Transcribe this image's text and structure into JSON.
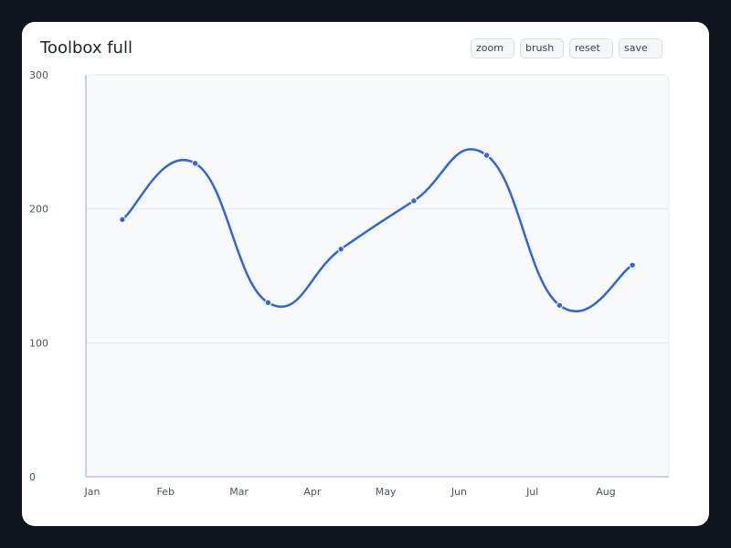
{
  "card": {
    "title": "Toolbox full"
  },
  "toolbox": {
    "buttons": [
      {
        "id": "zoom",
        "label": "zoom"
      },
      {
        "id": "brush",
        "label": "brush"
      },
      {
        "id": "reset",
        "label": "reset"
      },
      {
        "id": "save",
        "label": "save"
      }
    ]
  },
  "colors": {
    "series": "#2f66d9",
    "plot_background": "#f8f9fc",
    "gridline": "#e3e7ef",
    "axis": "#b9c4d6",
    "page_background": "#0f131c"
  },
  "chart_data": {
    "type": "line",
    "title": "Toolbox full",
    "categories": [
      "Jan",
      "Feb",
      "Mar",
      "Apr",
      "May",
      "Jun",
      "Jul",
      "Aug"
    ],
    "series": [
      {
        "values": [
          192,
          234,
          130,
          170,
          206,
          240,
          128,
          158
        ]
      }
    ],
    "smooth": true,
    "ylim": [
      0,
      300
    ],
    "yticks": [
      0,
      100,
      200,
      300
    ],
    "grid": true
  }
}
